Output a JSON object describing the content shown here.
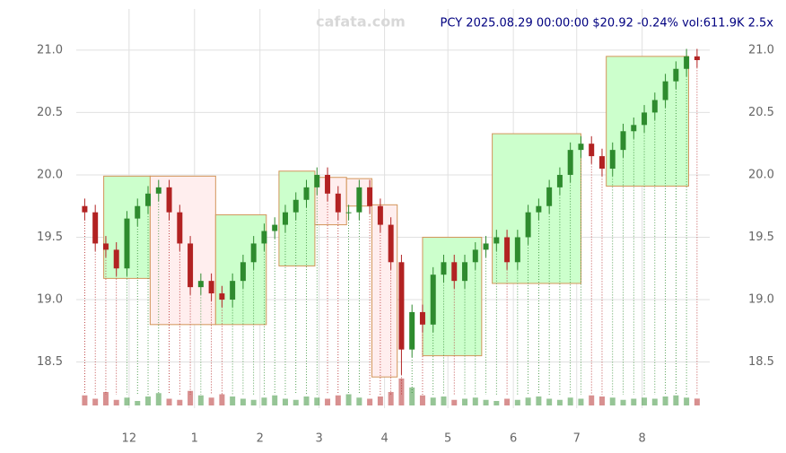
{
  "chart_data": {
    "type": "candlestick",
    "title": "PCY 2025.08.29 00:00:00 $20.92 -0.24% vol:611.9K 2.5x",
    "watermark": "cafata.com",
    "x": [
      0,
      5,
      10,
      15,
      20,
      25,
      30,
      35,
      40,
      45,
      50,
      55,
      60,
      65,
      70,
      75,
      80,
      85,
      90,
      95,
      100,
      105,
      110,
      115,
      120,
      125,
      130,
      135,
      140,
      145,
      150,
      155,
      160,
      165,
      170,
      175,
      180,
      185,
      190,
      195,
      200,
      205,
      210,
      215,
      220,
      225,
      230,
      235,
      240,
      245,
      250,
      255,
      260,
      265,
      270,
      275,
      280,
      285,
      290
    ],
    "open": [
      19.75,
      19.7,
      19.45,
      19.4,
      19.25,
      19.65,
      19.75,
      19.85,
      19.9,
      19.7,
      19.45,
      19.1,
      19.15,
      19.05,
      19.0,
      19.15,
      19.3,
      19.45,
      19.55,
      19.6,
      19.7,
      19.8,
      19.9,
      20.0,
      19.85,
      19.7,
      19.7,
      19.9,
      19.75,
      19.6,
      19.3,
      18.6,
      18.9,
      18.8,
      19.2,
      19.3,
      19.15,
      19.3,
      19.4,
      19.45,
      19.5,
      19.3,
      19.5,
      19.7,
      19.75,
      19.9,
      20.0,
      20.2,
      20.25,
      20.15,
      20.05,
      20.2,
      20.35,
      20.4,
      20.5,
      20.6,
      20.75,
      20.85,
      20.95
    ],
    "high": [
      19.81,
      19.76,
      19.51,
      19.46,
      19.71,
      19.81,
      19.91,
      19.96,
      19.96,
      19.76,
      19.51,
      19.21,
      19.21,
      19.11,
      19.21,
      19.36,
      19.51,
      19.61,
      19.66,
      19.76,
      19.86,
      19.96,
      20.06,
      20.06,
      19.91,
      19.76,
      19.96,
      19.96,
      19.81,
      19.66,
      19.36,
      18.96,
      18.96,
      19.26,
      19.36,
      19.36,
      19.36,
      19.46,
      19.51,
      19.56,
      19.56,
      19.56,
      19.76,
      19.81,
      19.96,
      20.06,
      20.26,
      20.31,
      20.31,
      20.21,
      20.26,
      20.41,
      20.46,
      20.56,
      20.66,
      20.81,
      20.91,
      21.01,
      21.01
    ],
    "low": [
      19.64,
      19.39,
      19.34,
      19.19,
      19.19,
      19.59,
      19.69,
      19.79,
      19.64,
      19.39,
      19.04,
      19.04,
      18.99,
      18.94,
      18.94,
      19.09,
      19.24,
      19.39,
      19.49,
      19.54,
      19.64,
      19.74,
      19.84,
      19.79,
      19.64,
      19.64,
      19.64,
      19.69,
      19.54,
      19.24,
      18.4,
      18.54,
      18.74,
      18.74,
      19.14,
      19.09,
      19.09,
      19.24,
      19.34,
      19.39,
      19.24,
      19.24,
      19.44,
      19.64,
      19.69,
      19.84,
      19.94,
      20.14,
      20.09,
      19.99,
      19.99,
      20.14,
      20.29,
      20.34,
      20.44,
      20.54,
      20.69,
      20.79,
      20.86
    ],
    "close": [
      19.7,
      19.45,
      19.4,
      19.25,
      19.65,
      19.75,
      19.85,
      19.9,
      19.7,
      19.45,
      19.1,
      19.15,
      19.05,
      19.0,
      19.15,
      19.3,
      19.45,
      19.55,
      19.6,
      19.7,
      19.8,
      19.9,
      20.0,
      19.85,
      19.7,
      19.7,
      19.9,
      19.75,
      19.6,
      19.3,
      18.6,
      18.9,
      18.8,
      19.2,
      19.3,
      19.15,
      19.3,
      19.4,
      19.45,
      19.5,
      19.3,
      19.5,
      19.7,
      19.75,
      19.9,
      20.0,
      20.2,
      20.25,
      20.15,
      20.05,
      20.2,
      20.35,
      20.4,
      20.5,
      20.6,
      20.75,
      20.85,
      20.95,
      20.92
    ],
    "volume": [
      900,
      600,
      1200,
      500,
      700,
      400,
      800,
      1100,
      600,
      500,
      1300,
      900,
      700,
      1000,
      800,
      600,
      500,
      700,
      900,
      600,
      500,
      800,
      700,
      600,
      900,
      1000,
      700,
      600,
      800,
      1200,
      2400,
      1600,
      900,
      700,
      800,
      500,
      600,
      700,
      500,
      400,
      600,
      500,
      700,
      800,
      600,
      500,
      700,
      600,
      900,
      800,
      700,
      500,
      600,
      700,
      600,
      800,
      900,
      700,
      612
    ],
    "up_color": "#2e8b2e",
    "down_color": "#b22222",
    "boxes": [
      {
        "x0": 9,
        "x1": 31,
        "low": 19.17,
        "high": 19.99,
        "color": "#ccffcc"
      },
      {
        "x0": 31,
        "x1": 62,
        "low": 18.8,
        "high": 19.99,
        "color": "#ffeeee"
      },
      {
        "x0": 62,
        "x1": 86,
        "low": 18.8,
        "high": 19.68,
        "color": "#ccffcc"
      },
      {
        "x0": 92,
        "x1": 109,
        "low": 19.27,
        "high": 20.03,
        "color": "#ccffcc"
      },
      {
        "x0": 109,
        "x1": 124,
        "low": 19.6,
        "high": 19.98,
        "color": "#ffeeee"
      },
      {
        "x0": 124,
        "x1": 136,
        "low": 19.75,
        "high": 19.97,
        "color": "#ffeeee"
      },
      {
        "x0": 136,
        "x1": 148,
        "low": 18.38,
        "high": 19.76,
        "color": "#ffeeee"
      },
      {
        "x0": 160,
        "x1": 188,
        "low": 18.55,
        "high": 19.5,
        "color": "#ccffcc"
      },
      {
        "x0": 193,
        "x1": 235,
        "low": 19.13,
        "high": 20.33,
        "color": "#ccffcc"
      },
      {
        "x0": 247,
        "x1": 286,
        "low": 19.91,
        "high": 20.95,
        "color": "#ccffcc"
      }
    ],
    "xlim": [
      -4,
      296
    ],
    "xticks": [
      {
        "value": 21,
        "label": "12"
      },
      {
        "value": 52,
        "label": "1"
      },
      {
        "value": 83,
        "label": "2"
      },
      {
        "value": 111,
        "label": "3"
      },
      {
        "value": 142,
        "label": "4"
      },
      {
        "value": 172,
        "label": "5"
      },
      {
        "value": 203,
        "label": "6"
      },
      {
        "value": 233,
        "label": "7"
      },
      {
        "value": 264,
        "label": "8"
      }
    ],
    "ylim": [
      18.13,
      21.33
    ],
    "yticks": [
      {
        "value": 18.5,
        "label": "18.5"
      },
      {
        "value": 19.0,
        "label": "19.0"
      },
      {
        "value": 19.5,
        "label": "19.5"
      },
      {
        "value": 20.0,
        "label": "20.0"
      },
      {
        "value": 20.5,
        "label": "20.5"
      },
      {
        "value": 21.0,
        "label": "21.0"
      }
    ],
    "grid": true
  }
}
